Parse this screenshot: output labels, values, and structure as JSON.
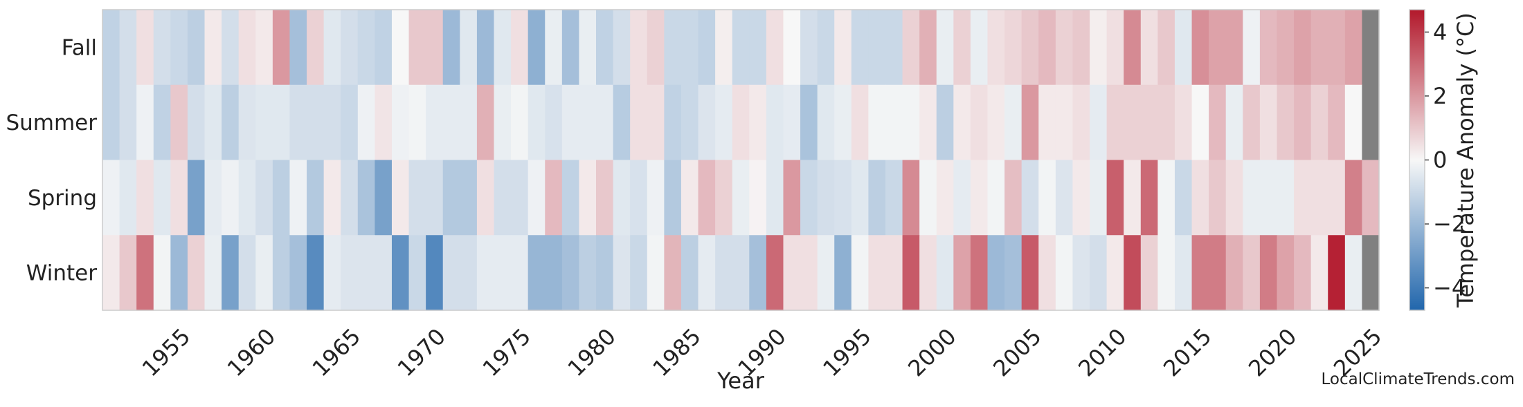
{
  "chart_data": {
    "type": "heatmap",
    "xlabel": "Year",
    "colorbar_label": "Temperature Anomaly (°C)",
    "colorbar_range": [
      -4.7,
      4.7
    ],
    "colorbar_ticks": [
      4,
      2,
      0,
      -2,
      -4
    ],
    "colorbar_tick_labels": [
      "4",
      "2",
      "0",
      "−2",
      "−4"
    ],
    "colormap": [
      "#2166ac",
      "#f7f7f7",
      "#b2182b"
    ],
    "missing_color": "#808080",
    "x_ticks": [
      1955,
      1960,
      1965,
      1970,
      1975,
      1980,
      1985,
      1990,
      1995,
      2000,
      2005,
      2010,
      2015,
      2020,
      2025
    ],
    "seasons": [
      "Fall",
      "Summer",
      "Spring",
      "Winter"
    ],
    "years": [
      1951,
      1952,
      1953,
      1954,
      1955,
      1956,
      1957,
      1958,
      1959,
      1960,
      1961,
      1962,
      1963,
      1964,
      1965,
      1966,
      1967,
      1968,
      1969,
      1970,
      1971,
      1972,
      1973,
      1974,
      1975,
      1976,
      1977,
      1978,
      1979,
      1980,
      1981,
      1982,
      1983,
      1984,
      1985,
      1986,
      1987,
      1988,
      1989,
      1990,
      1991,
      1992,
      1993,
      1994,
      1995,
      1996,
      1997,
      1998,
      1999,
      2000,
      2001,
      2002,
      2003,
      2004,
      2005,
      2006,
      2007,
      2008,
      2009,
      2010,
      2011,
      2012,
      2013,
      2014,
      2015,
      2016,
      2017,
      2018,
      2019,
      2020,
      2021,
      2022,
      2023,
      2024,
      2025
    ],
    "values": {
      "Fall": [
        -1.2,
        -0.8,
        0.5,
        -0.8,
        -1.0,
        -1.3,
        0.3,
        -0.8,
        0.5,
        0.3,
        2.0,
        -1.8,
        0.8,
        -0.5,
        -0.8,
        -1.0,
        -1.2,
        0.0,
        1.0,
        1.0,
        -2.0,
        -0.5,
        -2.0,
        -0.5,
        0.5,
        -2.3,
        -0.3,
        -1.8,
        -0.3,
        -1.2,
        -0.8,
        0.5,
        0.8,
        -1.0,
        -1.0,
        -1.2,
        0.2,
        -1.0,
        -1.0,
        0.5,
        0.0,
        -0.8,
        -1.0,
        0.3,
        -1.0,
        -1.0,
        -1.0,
        0.8,
        1.5,
        -0.3,
        0.8,
        -0.3,
        0.5,
        0.7,
        1.0,
        1.3,
        0.8,
        1.0,
        0.2,
        0.5,
        2.3,
        0.5,
        1.0,
        -0.5,
        2.2,
        1.8,
        1.8,
        -0.2,
        1.3,
        1.5,
        1.8,
        1.5,
        1.5,
        1.8,
        null
      ],
      "Summer": [
        -1.2,
        -0.8,
        -0.2,
        -1.2,
        1.0,
        -0.8,
        -0.5,
        -1.3,
        -0.6,
        -0.5,
        -0.5,
        -0.8,
        -0.8,
        -0.8,
        -1.0,
        -0.2,
        0.4,
        -0.2,
        -0.1,
        -0.4,
        -0.4,
        -0.4,
        1.5,
        -0.3,
        -0.1,
        -0.5,
        -0.7,
        -0.4,
        -0.4,
        -0.4,
        -1.4,
        0.5,
        0.5,
        -1.2,
        -1.0,
        -0.6,
        -0.4,
        0.5,
        0.3,
        -0.5,
        -0.4,
        -1.7,
        -0.5,
        -0.3,
        0.5,
        -0.1,
        -0.1,
        -0.1,
        0.3,
        -1.3,
        0.3,
        0.5,
        0.3,
        -0.3,
        2.0,
        0.3,
        0.3,
        0.5,
        -0.4,
        0.8,
        0.8,
        0.8,
        0.8,
        0.5,
        0.0,
        1.3,
        -0.3,
        1.0,
        0.5,
        1.0,
        1.3,
        0.8,
        1.3,
        0.0,
        null
      ],
      "Spring": [
        -0.2,
        -0.5,
        0.5,
        -0.5,
        0.5,
        -2.8,
        -0.4,
        -0.2,
        -0.5,
        -0.8,
        -1.3,
        -0.2,
        -1.5,
        0.3,
        -0.8,
        -1.7,
        -2.8,
        0.3,
        -0.8,
        -0.8,
        -1.5,
        -1.5,
        0.5,
        -0.8,
        -0.8,
        -0.2,
        1.3,
        -1.2,
        0.3,
        1.0,
        -0.5,
        -0.7,
        -0.2,
        -1.5,
        0.3,
        1.3,
        0.8,
        -0.3,
        0.1,
        -0.5,
        2.0,
        -1.0,
        -0.8,
        -0.7,
        -0.5,
        -1.3,
        -1.0,
        2.3,
        -0.1,
        0.3,
        -0.4,
        0.3,
        -0.1,
        1.2,
        -0.8,
        -0.1,
        -0.6,
        0.3,
        -0.3,
        3.2,
        0.3,
        3.0,
        -0.1,
        -1.0,
        0.5,
        1.0,
        0.5,
        -0.3,
        -0.3,
        -0.3,
        0.5,
        0.5,
        0.5,
        2.5,
        1.3
      ],
      "Winter": [
        0.3,
        1.0,
        2.8,
        -0.1,
        -2.0,
        0.8,
        -0.3,
        -2.8,
        -0.8,
        -0.3,
        -1.3,
        -1.8,
        -3.5,
        -0.4,
        -0.6,
        -0.6,
        -0.6,
        -3.3,
        -1.0,
        -3.6,
        -0.8,
        -0.8,
        -0.4,
        -0.4,
        -0.4,
        -2.1,
        -2.1,
        -1.8,
        -1.3,
        -1.5,
        -0.6,
        -1.0,
        -0.1,
        1.4,
        -1.3,
        -0.4,
        -0.8,
        -0.8,
        -1.8,
        3.0,
        0.5,
        0.5,
        -0.3,
        -2.3,
        -0.1,
        0.5,
        0.5,
        3.3,
        0.5,
        -0.5,
        1.8,
        2.8,
        -2.0,
        -1.8,
        3.3,
        0.5,
        -0.1,
        -0.6,
        -0.8,
        0.3,
        3.6,
        0.8,
        -0.1,
        -0.5,
        2.6,
        2.6,
        1.5,
        1.0,
        2.6,
        1.8,
        1.3,
        0.3,
        4.5,
        -0.3,
        null
      ]
    }
  },
  "credit": "LocalClimateTrends.com"
}
